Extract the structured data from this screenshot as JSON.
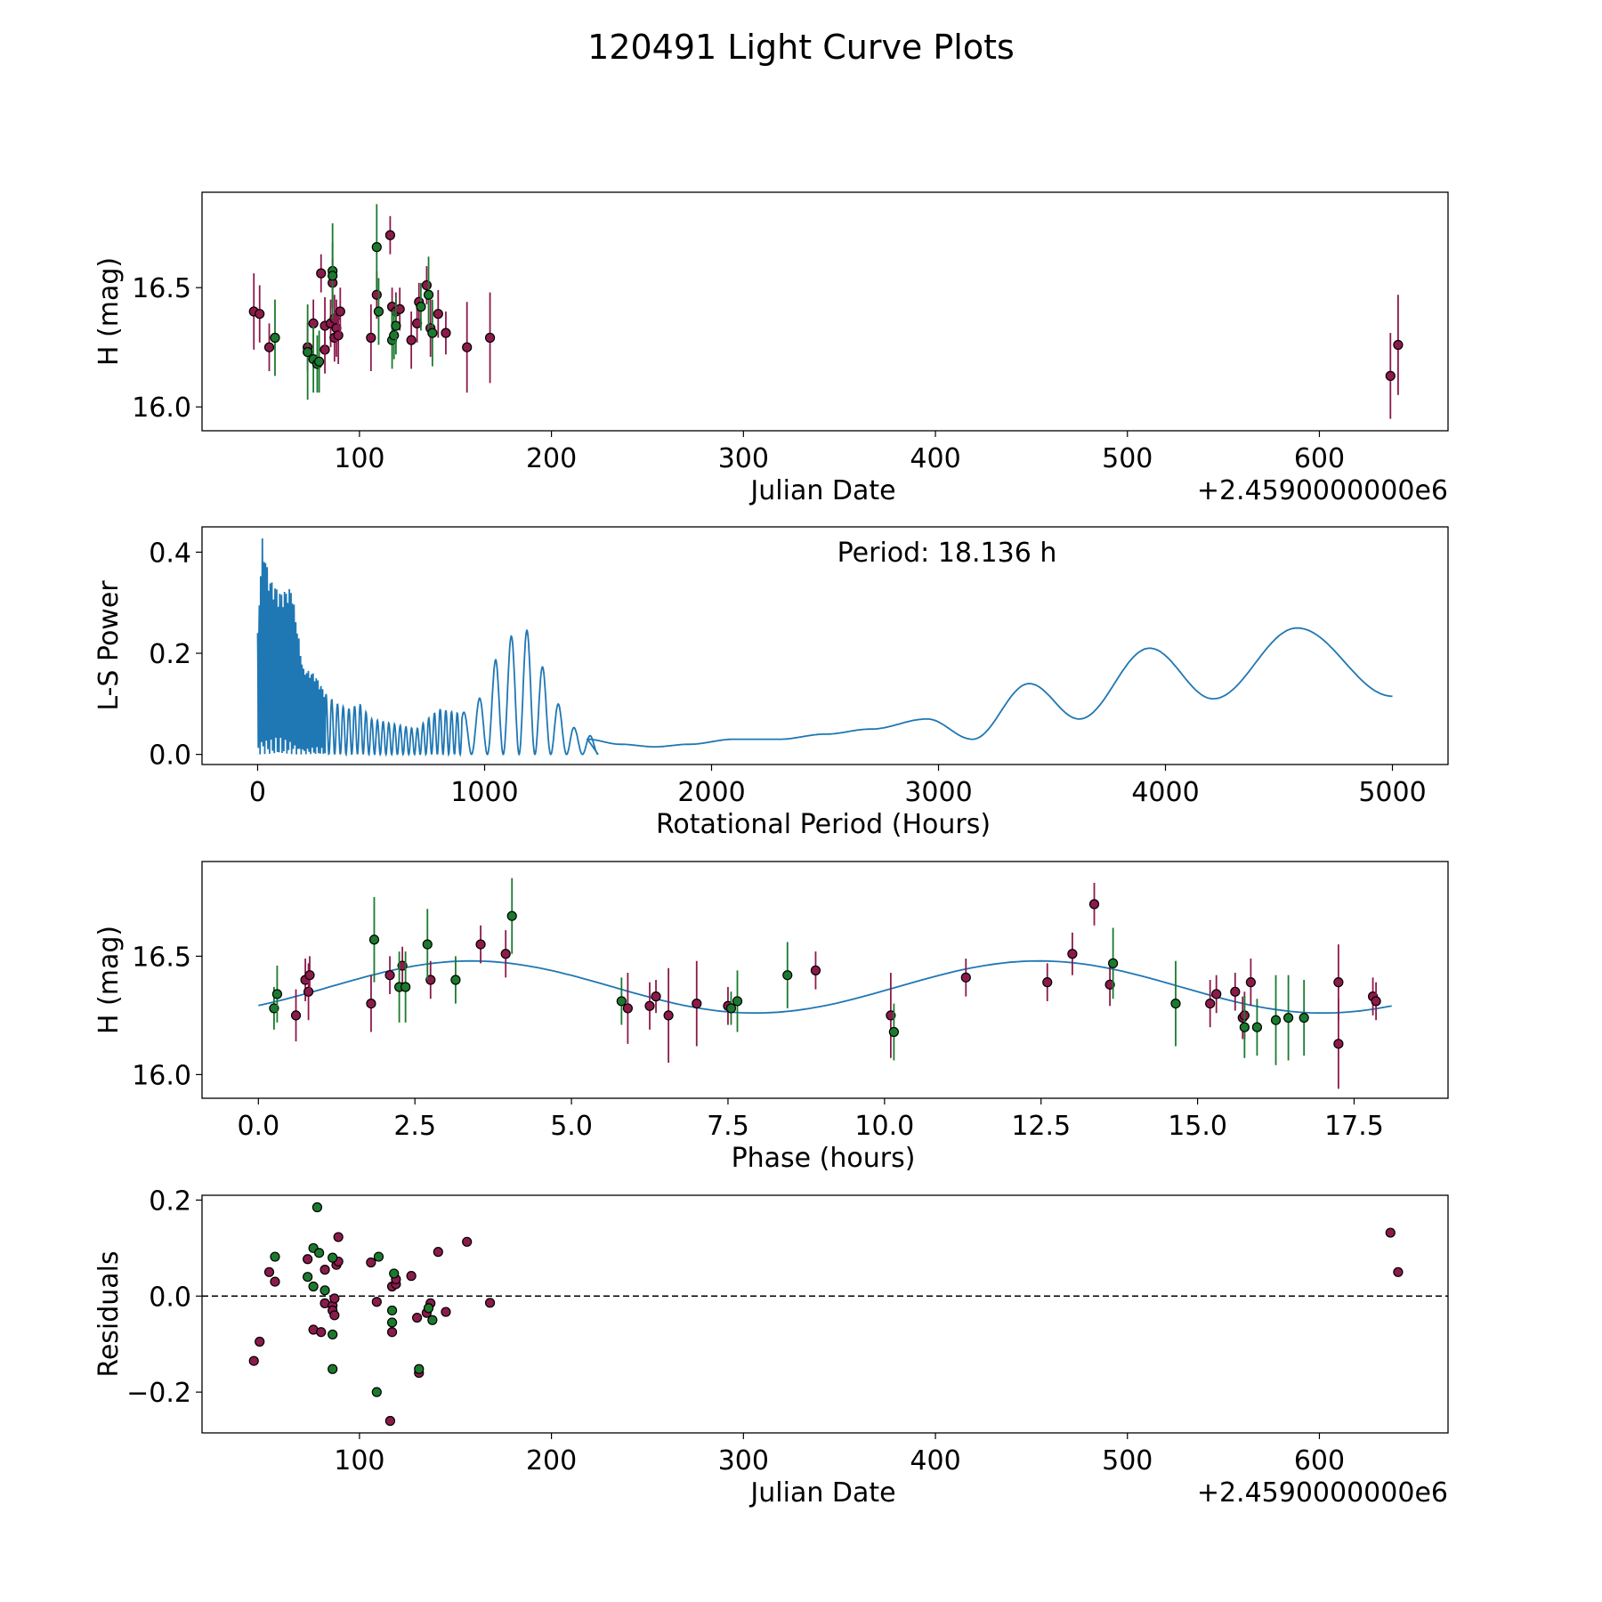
{
  "figure_title": "120491 Light Curve Plots",
  "colors": {
    "red": "#8c1a4b",
    "green": "#1b7a2e",
    "line": "#1f77b4",
    "edge": "#000000"
  },
  "chart_data": [
    {
      "id": "lightcurve",
      "type": "scatter",
      "xlabel": "Julian Date",
      "ylabel": "H (mag)",
      "x_offset_label": "+2.4590000000e6",
      "xlim": [
        18,
        667
      ],
      "ylim": [
        15.9,
        16.9
      ],
      "xticks": [
        100,
        200,
        300,
        400,
        500,
        600
      ],
      "xticklabels": [
        "100",
        "200",
        "300",
        "400",
        "500",
        "600"
      ],
      "yticks": [
        16.0,
        16.5
      ],
      "yticklabels": [
        "16.0",
        "16.5"
      ],
      "series": [
        {
          "name": "red",
          "color": "red",
          "points": [
            {
              "x": 45,
              "y": 16.4,
              "err": 0.16
            },
            {
              "x": 48,
              "y": 16.39,
              "err": 0.12
            },
            {
              "x": 53,
              "y": 16.25,
              "err": 0.1
            },
            {
              "x": 73,
              "y": 16.25,
              "err": 0.1
            },
            {
              "x": 76,
              "y": 16.35,
              "err": 0.1
            },
            {
              "x": 80,
              "y": 16.56,
              "err": 0.08
            },
            {
              "x": 82,
              "y": 16.24,
              "err": 0.1
            },
            {
              "x": 82,
              "y": 16.34,
              "err": 0.12
            },
            {
              "x": 85,
              "y": 16.35,
              "err": 0.1
            },
            {
              "x": 86,
              "y": 16.52,
              "err": 0.1
            },
            {
              "x": 87,
              "y": 16.37,
              "err": 0.1
            },
            {
              "x": 87,
              "y": 16.29,
              "err": 0.1
            },
            {
              "x": 88,
              "y": 16.33,
              "err": 0.12
            },
            {
              "x": 89,
              "y": 16.3,
              "err": 0.12
            },
            {
              "x": 90,
              "y": 16.4,
              "err": 0.1
            },
            {
              "x": 106,
              "y": 16.29,
              "err": 0.14
            },
            {
              "x": 109,
              "y": 16.47,
              "err": 0.1
            },
            {
              "x": 116,
              "y": 16.72,
              "err": 0.08
            },
            {
              "x": 117,
              "y": 16.42,
              "err": 0.08
            },
            {
              "x": 119,
              "y": 16.4,
              "err": 0.08
            },
            {
              "x": 121,
              "y": 16.41,
              "err": 0.09
            },
            {
              "x": 127,
              "y": 16.28,
              "err": 0.12
            },
            {
              "x": 130,
              "y": 16.35,
              "err": 0.08
            },
            {
              "x": 131,
              "y": 16.44,
              "err": 0.08
            },
            {
              "x": 135,
              "y": 16.51,
              "err": 0.08
            },
            {
              "x": 137,
              "y": 16.33,
              "err": 0.12
            },
            {
              "x": 141,
              "y": 16.39,
              "err": 0.1
            },
            {
              "x": 145,
              "y": 16.31,
              "err": 0.09
            },
            {
              "x": 156,
              "y": 16.25,
              "err": 0.19
            },
            {
              "x": 168,
              "y": 16.29,
              "err": 0.19
            },
            {
              "x": 637,
              "y": 16.13,
              "err": 0.18
            },
            {
              "x": 641,
              "y": 16.26,
              "err": 0.21
            }
          ]
        },
        {
          "name": "green",
          "color": "green",
          "points": [
            {
              "x": 56,
              "y": 16.29,
              "err": 0.16
            },
            {
              "x": 73,
              "y": 16.23,
              "err": 0.2
            },
            {
              "x": 76,
              "y": 16.2,
              "err": 0.14
            },
            {
              "x": 78,
              "y": 16.18,
              "err": 0.12
            },
            {
              "x": 79,
              "y": 16.19,
              "err": 0.13
            },
            {
              "x": 86,
              "y": 16.57,
              "err": 0.2
            },
            {
              "x": 86,
              "y": 16.55,
              "err": 0.14
            },
            {
              "x": 109,
              "y": 16.67,
              "err": 0.18
            },
            {
              "x": 110,
              "y": 16.4,
              "err": 0.14
            },
            {
              "x": 117,
              "y": 16.28,
              "err": 0.12
            },
            {
              "x": 118,
              "y": 16.3,
              "err": 0.1
            },
            {
              "x": 119,
              "y": 16.34,
              "err": 0.12
            },
            {
              "x": 132,
              "y": 16.42,
              "err": 0.1
            },
            {
              "x": 136,
              "y": 16.47,
              "err": 0.16
            },
            {
              "x": 138,
              "y": 16.31,
              "err": 0.14
            }
          ]
        }
      ]
    },
    {
      "id": "periodogram",
      "type": "line",
      "xlabel": "Rotational Period (Hours)",
      "ylabel": "L-S Power",
      "annotation": "Period: 18.136 h",
      "xlim": [
        -245,
        5245
      ],
      "ylim": [
        -0.02,
        0.45
      ],
      "xticks": [
        0,
        1000,
        2000,
        3000,
        4000,
        5000
      ],
      "xticklabels": [
        "0",
        "1000",
        "2000",
        "3000",
        "4000",
        "5000"
      ],
      "yticks": [
        0.0,
        0.2,
        0.4
      ],
      "yticklabels": [
        "0.0",
        "0.2",
        "0.4"
      ],
      "envelope": {
        "x": [
          0,
          20,
          50,
          100,
          150,
          200,
          250,
          300,
          350,
          400,
          450,
          500,
          600,
          700,
          800,
          900,
          1000,
          1050,
          1100,
          1150,
          1200,
          1250,
          1300,
          1350,
          1400,
          1450,
          1500
        ],
        "y": [
          0.24,
          0.43,
          0.35,
          0.32,
          0.33,
          0.17,
          0.16,
          0.12,
          0.1,
          0.09,
          0.1,
          0.07,
          0.06,
          0.05,
          0.09,
          0.08,
          0.12,
          0.19,
          0.22,
          0.26,
          0.24,
          0.18,
          0.12,
          0.08,
          0.05,
          0.04,
          0.03
        ]
      },
      "smooth": {
        "x": [
          1450,
          1600,
          1750,
          1900,
          2100,
          2300,
          2500,
          2700,
          2950,
          3150,
          3400,
          3620,
          3930,
          4210,
          4580,
          5000
        ],
        "y": [
          0.03,
          0.02,
          0.015,
          0.02,
          0.03,
          0.03,
          0.04,
          0.05,
          0.07,
          0.03,
          0.14,
          0.07,
          0.21,
          0.11,
          0.25,
          0.115
        ]
      }
    },
    {
      "id": "phased",
      "type": "scatter",
      "xlabel": "Phase (hours)",
      "ylabel": "H (mag)",
      "xlim": [
        -0.9,
        19.0
      ],
      "ylim": [
        15.9,
        16.9
      ],
      "xticks": [
        0.0,
        2.5,
        5.0,
        7.5,
        10.0,
        12.5,
        15.0,
        17.5
      ],
      "xticklabels": [
        "0.0",
        "2.5",
        "5.0",
        "7.5",
        "10.0",
        "12.5",
        "15.0",
        "17.5"
      ],
      "yticks": [
        16.0,
        16.5
      ],
      "yticklabels": [
        "16.0",
        "16.5"
      ],
      "model": {
        "period": 18.136,
        "mean": 16.37,
        "amp": 0.11,
        "phase_peak": 3.4,
        "x_max": 18.136
      },
      "series": [
        {
          "name": "red",
          "color": "red",
          "points": [
            {
              "x": 0.6,
              "y": 16.25,
              "err": 0.11
            },
            {
              "x": 0.75,
              "y": 16.4,
              "err": 0.09
            },
            {
              "x": 0.8,
              "y": 16.35,
              "err": 0.12
            },
            {
              "x": 0.82,
              "y": 16.42,
              "err": 0.08
            },
            {
              "x": 1.8,
              "y": 16.3,
              "err": 0.12
            },
            {
              "x": 2.1,
              "y": 16.42,
              "err": 0.08
            },
            {
              "x": 2.3,
              "y": 16.46,
              "err": 0.08
            },
            {
              "x": 2.75,
              "y": 16.4,
              "err": 0.08
            },
            {
              "x": 3.55,
              "y": 16.55,
              "err": 0.08
            },
            {
              "x": 3.95,
              "y": 16.51,
              "err": 0.1
            },
            {
              "x": 5.9,
              "y": 16.28,
              "err": 0.15
            },
            {
              "x": 6.25,
              "y": 16.29,
              "err": 0.1
            },
            {
              "x": 6.35,
              "y": 16.33,
              "err": 0.07
            },
            {
              "x": 6.55,
              "y": 16.25,
              "err": 0.2
            },
            {
              "x": 7.0,
              "y": 16.3,
              "err": 0.18
            },
            {
              "x": 7.5,
              "y": 16.29,
              "err": 0.08
            },
            {
              "x": 8.9,
              "y": 16.44,
              "err": 0.08
            },
            {
              "x": 10.1,
              "y": 16.25,
              "err": 0.18
            },
            {
              "x": 11.3,
              "y": 16.41,
              "err": 0.08
            },
            {
              "x": 12.6,
              "y": 16.39,
              "err": 0.08
            },
            {
              "x": 13.0,
              "y": 16.51,
              "err": 0.09
            },
            {
              "x": 13.35,
              "y": 16.72,
              "err": 0.09
            },
            {
              "x": 13.6,
              "y": 16.38,
              "err": 0.09
            },
            {
              "x": 15.2,
              "y": 16.3,
              "err": 0.1
            },
            {
              "x": 15.3,
              "y": 16.34,
              "err": 0.08
            },
            {
              "x": 15.6,
              "y": 16.35,
              "err": 0.08
            },
            {
              "x": 15.72,
              "y": 16.24,
              "err": 0.09
            },
            {
              "x": 15.75,
              "y": 16.25,
              "err": 0.1
            },
            {
              "x": 15.85,
              "y": 16.39,
              "err": 0.1
            },
            {
              "x": 17.25,
              "y": 16.39,
              "err": 0.16
            },
            {
              "x": 17.25,
              "y": 16.13,
              "err": 0.19
            },
            {
              "x": 17.8,
              "y": 16.33,
              "err": 0.08
            },
            {
              "x": 17.85,
              "y": 16.31,
              "err": 0.08
            }
          ]
        },
        {
          "name": "green",
          "color": "green",
          "points": [
            {
              "x": 0.25,
              "y": 16.28,
              "err": 0.09
            },
            {
              "x": 0.3,
              "y": 16.34,
              "err": 0.12
            },
            {
              "x": 1.85,
              "y": 16.57,
              "err": 0.18
            },
            {
              "x": 2.25,
              "y": 16.37,
              "err": 0.15
            },
            {
              "x": 2.35,
              "y": 16.37,
              "err": 0.15
            },
            {
              "x": 2.7,
              "y": 16.55,
              "err": 0.15
            },
            {
              "x": 3.15,
              "y": 16.4,
              "err": 0.1
            },
            {
              "x": 4.05,
              "y": 16.67,
              "err": 0.16
            },
            {
              "x": 5.8,
              "y": 16.31,
              "err": 0.1
            },
            {
              "x": 7.55,
              "y": 16.28,
              "err": 0.07
            },
            {
              "x": 7.65,
              "y": 16.31,
              "err": 0.13
            },
            {
              "x": 8.45,
              "y": 16.42,
              "err": 0.14
            },
            {
              "x": 10.15,
              "y": 16.18,
              "err": 0.12
            },
            {
              "x": 13.65,
              "y": 16.47,
              "err": 0.15
            },
            {
              "x": 14.65,
              "y": 16.3,
              "err": 0.18
            },
            {
              "x": 15.75,
              "y": 16.2,
              "err": 0.13
            },
            {
              "x": 15.95,
              "y": 16.2,
              "err": 0.12
            },
            {
              "x": 16.25,
              "y": 16.23,
              "err": 0.19
            },
            {
              "x": 16.45,
              "y": 16.24,
              "err": 0.18
            },
            {
              "x": 16.7,
              "y": 16.24,
              "err": 0.16
            }
          ]
        }
      ]
    },
    {
      "id": "residuals",
      "type": "scatter",
      "xlabel": "Julian Date",
      "ylabel": "Residuals",
      "x_offset_label": "+2.4590000000e6",
      "xlim": [
        18,
        667
      ],
      "ylim": [
        -0.285,
        0.21
      ],
      "xticks": [
        100,
        200,
        300,
        400,
        500,
        600
      ],
      "xticklabels": [
        "100",
        "200",
        "300",
        "400",
        "500",
        "600"
      ],
      "yticks": [
        -0.2,
        0.0,
        0.2
      ],
      "yticklabels": [
        "−0.2",
        "0.0",
        "0.2"
      ],
      "zero_line": 0.0,
      "series": [
        {
          "name": "red",
          "color": "red",
          "points": [
            {
              "x": 45,
              "y": -0.135
            },
            {
              "x": 48,
              "y": -0.095
            },
            {
              "x": 53,
              "y": 0.05
            },
            {
              "x": 56,
              "y": 0.03
            },
            {
              "x": 73,
              "y": 0.077
            },
            {
              "x": 76,
              "y": -0.07
            },
            {
              "x": 80,
              "y": -0.075
            },
            {
              "x": 82,
              "y": 0.055
            },
            {
              "x": 82,
              "y": -0.015
            },
            {
              "x": 86,
              "y": -0.02
            },
            {
              "x": 86,
              "y": -0.03
            },
            {
              "x": 87,
              "y": -0.005
            },
            {
              "x": 87,
              "y": -0.04
            },
            {
              "x": 88,
              "y": 0.065
            },
            {
              "x": 89,
              "y": 0.072
            },
            {
              "x": 89,
              "y": 0.123
            },
            {
              "x": 106,
              "y": 0.07
            },
            {
              "x": 109,
              "y": -0.012
            },
            {
              "x": 116,
              "y": -0.26
            },
            {
              "x": 117,
              "y": 0.02
            },
            {
              "x": 117,
              "y": -0.075
            },
            {
              "x": 119,
              "y": 0.025
            },
            {
              "x": 119,
              "y": 0.035
            },
            {
              "x": 127,
              "y": 0.042
            },
            {
              "x": 130,
              "y": -0.045
            },
            {
              "x": 131,
              "y": -0.16
            },
            {
              "x": 135,
              "y": -0.035
            },
            {
              "x": 137,
              "y": -0.015
            },
            {
              "x": 141,
              "y": 0.092
            },
            {
              "x": 145,
              "y": -0.033
            },
            {
              "x": 156,
              "y": 0.113
            },
            {
              "x": 168,
              "y": -0.014
            },
            {
              "x": 637,
              "y": 0.132
            },
            {
              "x": 641,
              "y": 0.05
            }
          ]
        },
        {
          "name": "green",
          "color": "green",
          "points": [
            {
              "x": 56,
              "y": 0.082
            },
            {
              "x": 73,
              "y": 0.04
            },
            {
              "x": 76,
              "y": 0.1
            },
            {
              "x": 76,
              "y": 0.02
            },
            {
              "x": 78,
              "y": 0.185
            },
            {
              "x": 79,
              "y": 0.09
            },
            {
              "x": 82,
              "y": 0.012
            },
            {
              "x": 86,
              "y": -0.08
            },
            {
              "x": 86,
              "y": -0.152
            },
            {
              "x": 86,
              "y": 0.08
            },
            {
              "x": 109,
              "y": -0.2
            },
            {
              "x": 110,
              "y": 0.082
            },
            {
              "x": 117,
              "y": -0.03
            },
            {
              "x": 117,
              "y": -0.055
            },
            {
              "x": 118,
              "y": 0.047
            },
            {
              "x": 131,
              "y": -0.152
            },
            {
              "x": 136,
              "y": -0.025
            },
            {
              "x": 138,
              "y": -0.05
            }
          ]
        }
      ]
    }
  ]
}
